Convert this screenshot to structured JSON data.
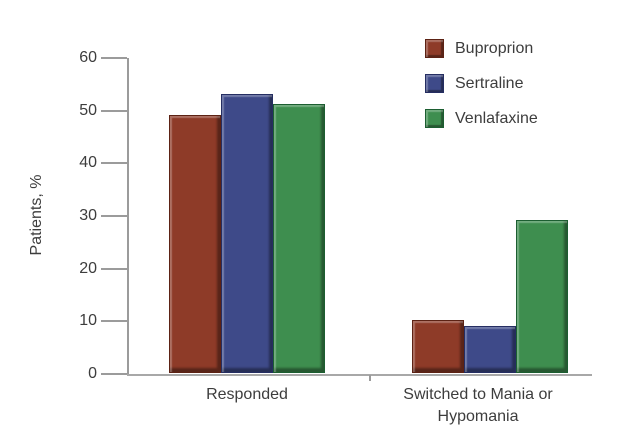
{
  "figure": {
    "background": "#ffffff",
    "text_color": "#3d3d3d",
    "axis_color": "#9b9b9b"
  },
  "chart_data": {
    "type": "bar",
    "title": "",
    "xlabel": "",
    "ylabel": "Patients, %",
    "ylim": [
      0,
      60
    ],
    "yticks": [
      0,
      10,
      20,
      30,
      40,
      50,
      60
    ],
    "grid": false,
    "legend_position": "top-right",
    "categories": [
      "Responded",
      "Switched to Mania or Hypomania"
    ],
    "category_label_lines": [
      [
        "Responded"
      ],
      [
        "Switched to Mania or",
        "Hypomania"
      ]
    ],
    "series": [
      {
        "name": "Buproprion",
        "color": "#8E3B28",
        "border_color": "#5C2214",
        "values": [
          49,
          10
        ]
      },
      {
        "name": "Sertraline",
        "color": "#3E4A89",
        "border_color": "#252E62",
        "values": [
          53,
          9
        ]
      },
      {
        "name": "Venlafaxine",
        "color": "#3E8E4F",
        "border_color": "#1C5E31",
        "values": [
          51,
          29
        ]
      }
    ]
  }
}
